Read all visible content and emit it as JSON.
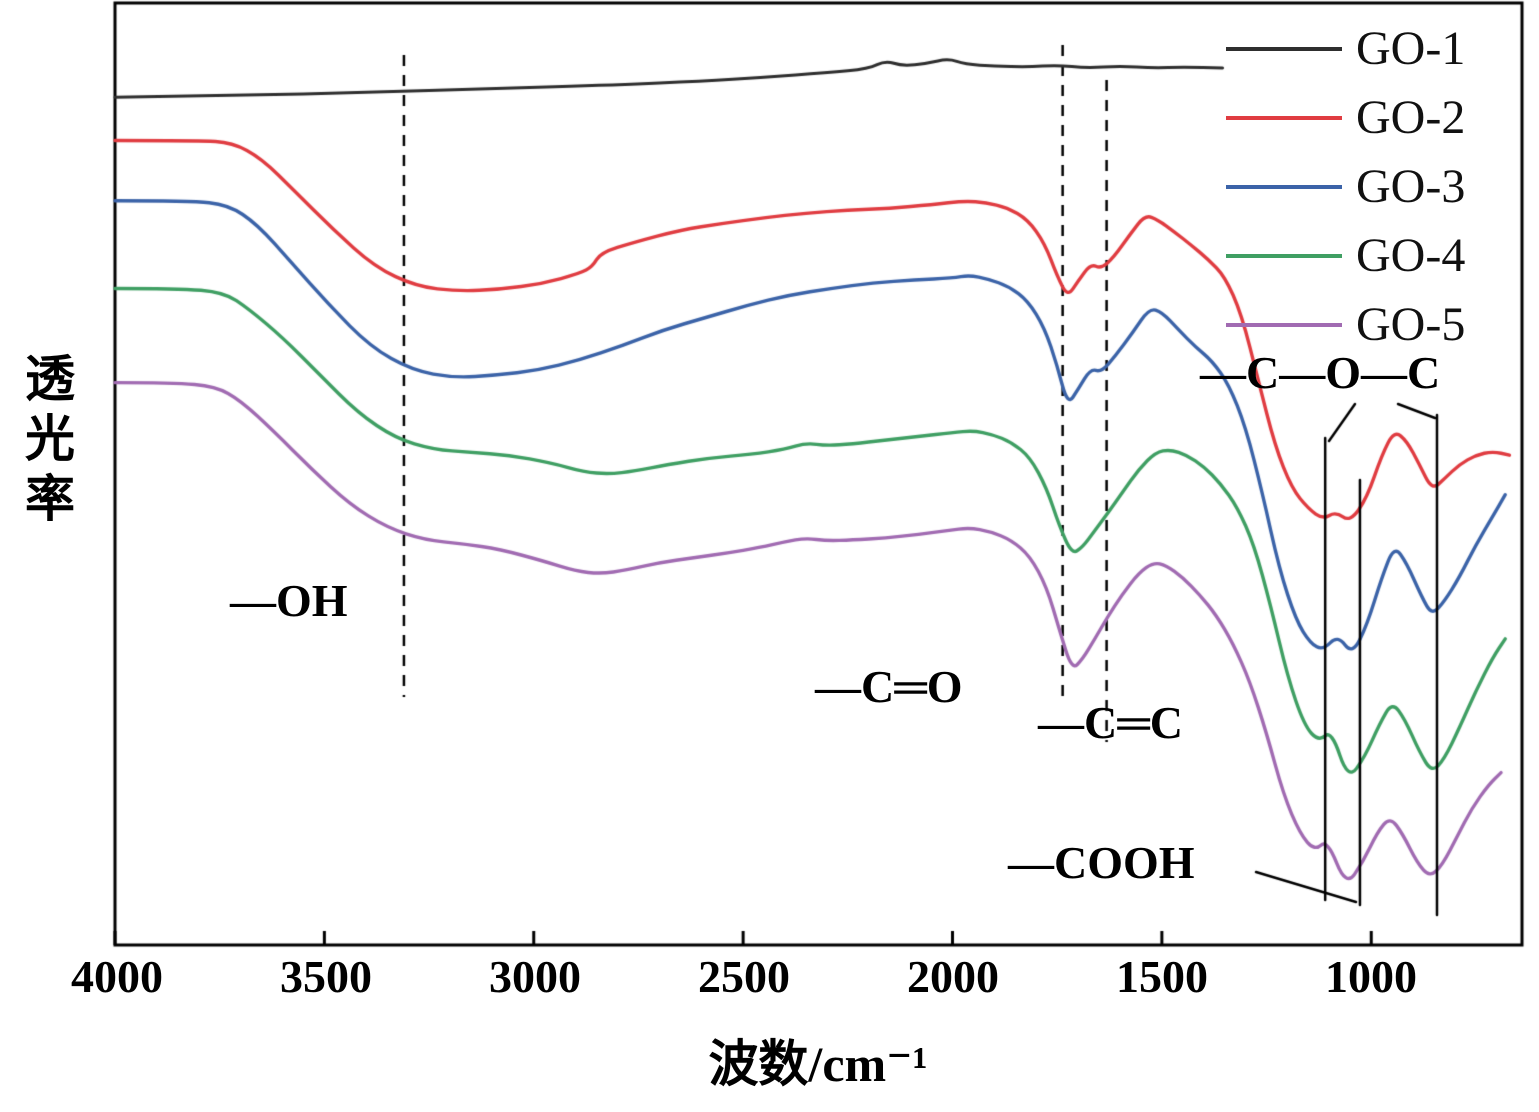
{
  "figure": {
    "background": "#ffffff",
    "border_color": "#000000"
  },
  "chart_data": {
    "type": "line",
    "title": "",
    "x_label": "波数/cm⁻¹",
    "y_label": "透光率",
    "x_ticks": [
      "4000",
      "3500",
      "3000",
      "2500",
      "2000",
      "1500",
      "1000"
    ],
    "x_tick_values": [
      4000,
      3500,
      3000,
      2500,
      2000,
      1500,
      1000
    ],
    "x_range": [
      4000,
      640
    ],
    "x_axis_reversed": true,
    "y_range": [
      0,
      100
    ],
    "y_units": "transmittance, arbitrary offset units (no y ticks shown)",
    "grid": false,
    "legend_position": "top-right",
    "dashed_band_lines_cm": [
      3310,
      1737,
      1632
    ],
    "solid_band_lines_cm": [
      1110,
      1027,
      843
    ],
    "annotations": [
      {
        "label": "—OH",
        "band_cm": 3310
      },
      {
        "label": "—C═O",
        "band_cm": 1737
      },
      {
        "label": "—C═C",
        "band_cm": 1632
      },
      {
        "label": "—COOH",
        "band_cm": 1027
      },
      {
        "label": "—C—O—C",
        "band_cm": 1110
      }
    ],
    "series": [
      {
        "name": "GO-1",
        "color": "#2e2e2e",
        "points": [
          [
            4000,
            90.0
          ],
          [
            3700,
            90.2
          ],
          [
            3400,
            90.5
          ],
          [
            3100,
            90.9
          ],
          [
            2800,
            91.3
          ],
          [
            2600,
            91.7
          ],
          [
            2450,
            92.1
          ],
          [
            2300,
            92.6
          ],
          [
            2200,
            93.0
          ],
          [
            2160,
            93.9
          ],
          [
            2120,
            93.3
          ],
          [
            2060,
            93.6
          ],
          [
            2010,
            94.1
          ],
          [
            1970,
            93.5
          ],
          [
            1900,
            93.3
          ],
          [
            1820,
            93.2
          ],
          [
            1750,
            93.4
          ],
          [
            1680,
            93.1
          ],
          [
            1600,
            93.3
          ],
          [
            1520,
            93.1
          ],
          [
            1450,
            93.2
          ],
          [
            1355,
            93.1
          ]
        ]
      },
      {
        "name": "GO-2",
        "color": "#e03c41",
        "points": [
          [
            4000,
            85.4
          ],
          [
            3800,
            85.4
          ],
          [
            3720,
            85.2
          ],
          [
            3650,
            83.5
          ],
          [
            3570,
            80.0
          ],
          [
            3480,
            76.0
          ],
          [
            3380,
            72.0
          ],
          [
            3280,
            69.9
          ],
          [
            3180,
            69.4
          ],
          [
            3080,
            69.6
          ],
          [
            2980,
            70.2
          ],
          [
            2890,
            71.3
          ],
          [
            2860,
            72.0
          ],
          [
            2840,
            73.5
          ],
          [
            2760,
            74.6
          ],
          [
            2650,
            75.9
          ],
          [
            2550,
            76.6
          ],
          [
            2450,
            77.2
          ],
          [
            2350,
            77.7
          ],
          [
            2250,
            78.0
          ],
          [
            2150,
            78.2
          ],
          [
            2050,
            78.6
          ],
          [
            1970,
            79.0
          ],
          [
            1920,
            78.8
          ],
          [
            1870,
            78.3
          ],
          [
            1820,
            77.0
          ],
          [
            1780,
            74.5
          ],
          [
            1750,
            71.0
          ],
          [
            1725,
            68.8
          ],
          [
            1700,
            70.5
          ],
          [
            1670,
            72.3
          ],
          [
            1645,
            71.8
          ],
          [
            1615,
            73.0
          ],
          [
            1575,
            75.5
          ],
          [
            1540,
            77.5
          ],
          [
            1510,
            77.0
          ],
          [
            1470,
            75.7
          ],
          [
            1430,
            74.3
          ],
          [
            1390,
            72.8
          ],
          [
            1350,
            71.0
          ],
          [
            1310,
            67.0
          ],
          [
            1270,
            60.0
          ],
          [
            1230,
            53.0
          ],
          [
            1190,
            48.5
          ],
          [
            1150,
            46.3
          ],
          [
            1115,
            45.2
          ],
          [
            1085,
            46.0
          ],
          [
            1050,
            44.9
          ],
          [
            1010,
            47.5
          ],
          [
            975,
            52.0
          ],
          [
            945,
            54.6
          ],
          [
            915,
            53.5
          ],
          [
            885,
            51.0
          ],
          [
            855,
            48.3
          ],
          [
            825,
            49.5
          ],
          [
            790,
            51.0
          ],
          [
            750,
            52.0
          ],
          [
            710,
            52.4
          ],
          [
            670,
            52.0
          ]
        ]
      },
      {
        "name": "GO-3",
        "color": "#3b63a8",
        "points": [
          [
            4000,
            79.0
          ],
          [
            3820,
            79.0
          ],
          [
            3730,
            78.6
          ],
          [
            3660,
            76.5
          ],
          [
            3580,
            72.5
          ],
          [
            3490,
            68.0
          ],
          [
            3390,
            63.5
          ],
          [
            3290,
            61.0
          ],
          [
            3190,
            60.2
          ],
          [
            3090,
            60.5
          ],
          [
            2990,
            61.0
          ],
          [
            2890,
            62.1
          ],
          [
            2790,
            63.6
          ],
          [
            2690,
            65.3
          ],
          [
            2590,
            66.6
          ],
          [
            2490,
            67.9
          ],
          [
            2390,
            69.0
          ],
          [
            2290,
            69.7
          ],
          [
            2190,
            70.3
          ],
          [
            2090,
            70.6
          ],
          [
            2000,
            70.8
          ],
          [
            1960,
            71.1
          ],
          [
            1915,
            70.7
          ],
          [
            1865,
            69.9
          ],
          [
            1820,
            68.4
          ],
          [
            1780,
            65.5
          ],
          [
            1750,
            61.5
          ],
          [
            1725,
            57.3
          ],
          [
            1700,
            59.0
          ],
          [
            1670,
            61.2
          ],
          [
            1645,
            60.8
          ],
          [
            1610,
            62.6
          ],
          [
            1570,
            65.0
          ],
          [
            1530,
            67.6
          ],
          [
            1500,
            67.2
          ],
          [
            1460,
            65.3
          ],
          [
            1420,
            63.5
          ],
          [
            1380,
            62.0
          ],
          [
            1340,
            59.5
          ],
          [
            1300,
            55.0
          ],
          [
            1260,
            48.0
          ],
          [
            1220,
            40.0
          ],
          [
            1180,
            34.5
          ],
          [
            1145,
            32.0
          ],
          [
            1115,
            31.3
          ],
          [
            1080,
            32.9
          ],
          [
            1045,
            30.8
          ],
          [
            1010,
            34.0
          ],
          [
            975,
            39.0
          ],
          [
            945,
            42.4
          ],
          [
            915,
            40.5
          ],
          [
            880,
            37.0
          ],
          [
            855,
            35.0
          ],
          [
            825,
            36.5
          ],
          [
            790,
            39.0
          ],
          [
            750,
            42.5
          ],
          [
            710,
            45.5
          ],
          [
            680,
            47.8
          ]
        ]
      },
      {
        "name": "GO-4",
        "color": "#3f9f63",
        "points": [
          [
            4000,
            69.7
          ],
          [
            3850,
            69.7
          ],
          [
            3740,
            69.3
          ],
          [
            3680,
            67.5
          ],
          [
            3600,
            64.5
          ],
          [
            3510,
            60.5
          ],
          [
            3420,
            56.5
          ],
          [
            3330,
            53.8
          ],
          [
            3240,
            52.6
          ],
          [
            3150,
            52.3
          ],
          [
            3060,
            52.0
          ],
          [
            2960,
            51.2
          ],
          [
            2880,
            50.2
          ],
          [
            2820,
            50.0
          ],
          [
            2760,
            50.3
          ],
          [
            2680,
            51.0
          ],
          [
            2580,
            51.7
          ],
          [
            2480,
            52.1
          ],
          [
            2400,
            52.6
          ],
          [
            2350,
            53.3
          ],
          [
            2300,
            53.0
          ],
          [
            2240,
            53.2
          ],
          [
            2160,
            53.6
          ],
          [
            2080,
            54.0
          ],
          [
            2000,
            54.4
          ],
          [
            1950,
            54.6
          ],
          [
            1905,
            54.2
          ],
          [
            1860,
            53.4
          ],
          [
            1815,
            51.8
          ],
          [
            1775,
            48.5
          ],
          [
            1745,
            44.5
          ],
          [
            1715,
            41.5
          ],
          [
            1690,
            42.2
          ],
          [
            1660,
            44.0
          ],
          [
            1630,
            45.8
          ],
          [
            1595,
            48.0
          ],
          [
            1555,
            50.5
          ],
          [
            1515,
            52.3
          ],
          [
            1480,
            52.6
          ],
          [
            1440,
            52.0
          ],
          [
            1400,
            50.8
          ],
          [
            1360,
            49.0
          ],
          [
            1320,
            46.5
          ],
          [
            1280,
            42.5
          ],
          [
            1240,
            36.0
          ],
          [
            1200,
            28.5
          ],
          [
            1160,
            23.3
          ],
          [
            1125,
            21.6
          ],
          [
            1095,
            22.8
          ],
          [
            1055,
            17.5
          ],
          [
            1015,
            20.0
          ],
          [
            980,
            23.5
          ],
          [
            950,
            25.8
          ],
          [
            920,
            24.0
          ],
          [
            885,
            20.5
          ],
          [
            855,
            18.3
          ],
          [
            825,
            19.8
          ],
          [
            790,
            23.0
          ],
          [
            750,
            27.0
          ],
          [
            710,
            30.5
          ],
          [
            680,
            32.5
          ]
        ]
      },
      {
        "name": "GO-5",
        "color": "#a16bb2",
        "points": [
          [
            4000,
            59.7
          ],
          [
            3860,
            59.7
          ],
          [
            3760,
            59.3
          ],
          [
            3700,
            57.8
          ],
          [
            3620,
            54.5
          ],
          [
            3530,
            50.5
          ],
          [
            3440,
            46.8
          ],
          [
            3350,
            44.3
          ],
          [
            3260,
            43.0
          ],
          [
            3170,
            42.6
          ],
          [
            3080,
            42.0
          ],
          [
            2980,
            40.8
          ],
          [
            2900,
            39.7
          ],
          [
            2840,
            39.4
          ],
          [
            2780,
            39.8
          ],
          [
            2700,
            40.6
          ],
          [
            2620,
            41.1
          ],
          [
            2540,
            41.6
          ],
          [
            2460,
            42.2
          ],
          [
            2400,
            42.8
          ],
          [
            2350,
            43.2
          ],
          [
            2300,
            42.9
          ],
          [
            2240,
            43.0
          ],
          [
            2160,
            43.2
          ],
          [
            2080,
            43.6
          ],
          [
            2010,
            44.0
          ],
          [
            1960,
            44.3
          ],
          [
            1910,
            43.9
          ],
          [
            1860,
            43.0
          ],
          [
            1815,
            41.3
          ],
          [
            1775,
            38.0
          ],
          [
            1745,
            33.5
          ],
          [
            1715,
            29.2
          ],
          [
            1690,
            30.3
          ],
          [
            1660,
            32.5
          ],
          [
            1630,
            34.8
          ],
          [
            1595,
            37.2
          ],
          [
            1555,
            39.5
          ],
          [
            1520,
            40.6
          ],
          [
            1490,
            40.3
          ],
          [
            1450,
            39.0
          ],
          [
            1410,
            37.2
          ],
          [
            1370,
            35.0
          ],
          [
            1330,
            32.0
          ],
          [
            1290,
            28.0
          ],
          [
            1250,
            22.5
          ],
          [
            1210,
            16.0
          ],
          [
            1170,
            11.8
          ],
          [
            1135,
            10.0
          ],
          [
            1105,
            11.2
          ],
          [
            1060,
            6.2
          ],
          [
            1020,
            8.8
          ],
          [
            985,
            12.0
          ],
          [
            955,
            13.6
          ],
          [
            925,
            11.8
          ],
          [
            890,
            8.7
          ],
          [
            860,
            7.2
          ],
          [
            830,
            8.5
          ],
          [
            795,
            11.5
          ],
          [
            760,
            14.5
          ],
          [
            720,
            17.0
          ],
          [
            690,
            18.3
          ]
        ]
      }
    ]
  }
}
